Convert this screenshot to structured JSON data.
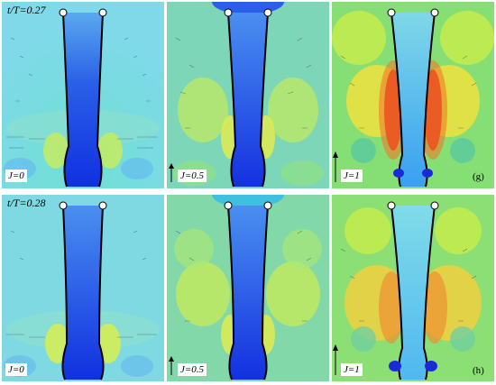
{
  "rows": [
    {
      "time_label": "t/T=0.27",
      "panels": [
        {
          "j_label": "J=0",
          "scheme": "cyan",
          "tag": ""
        },
        {
          "j_label": "J=0.5",
          "scheme": "green",
          "tag": ""
        },
        {
          "j_label": "J=1",
          "scheme": "hot",
          "tag": "(g)"
        }
      ]
    },
    {
      "time_label": "t/T=0.28",
      "panels": [
        {
          "j_label": "J=0",
          "scheme": "cyan",
          "tag": ""
        },
        {
          "j_label": "J=0.5",
          "scheme": "green",
          "tag": ""
        },
        {
          "j_label": "J=1",
          "scheme": "hot",
          "tag": "(h)"
        }
      ]
    }
  ]
}
